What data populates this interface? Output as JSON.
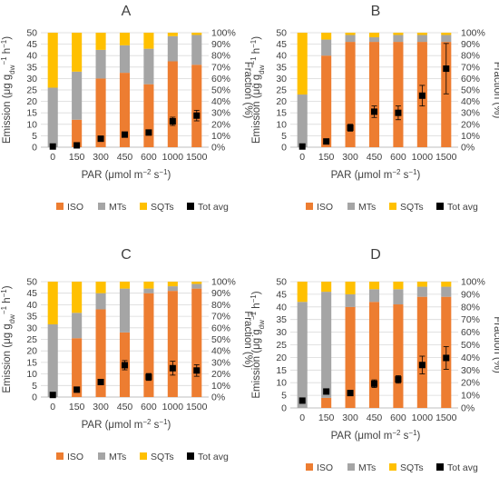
{
  "colors": {
    "ISO": "#ED7D31",
    "MTs": "#A5A5A5",
    "SQTs": "#FFC000",
    "Tot avg": "#000000",
    "grid": "#d9d9d9",
    "text": "#404040"
  },
  "chart_data": [
    {
      "type": "bar",
      "panel": "A",
      "categories": [
        "0",
        "150",
        "300",
        "450",
        "600",
        "1000",
        "1500"
      ],
      "xlabel": "PAR (μmol m⁻² s⁻¹)",
      "ylabel": "Emission (μg g_dw⁻¹ h⁻¹)",
      "y2label": "Fraction (%)",
      "ylim": [
        0,
        50
      ],
      "y2lim": [
        0,
        100
      ],
      "yticks": [
        "0",
        "5",
        "10",
        "15",
        "20",
        "25",
        "30",
        "35",
        "40",
        "45",
        "50"
      ],
      "y2ticks": [
        "0%",
        "10%",
        "20%",
        "30%",
        "40%",
        "50%",
        "60%",
        "70%",
        "80%",
        "90%",
        "100%"
      ],
      "stacked": true,
      "grid": true,
      "legend": "bottom",
      "series": [
        {
          "name": "ISO",
          "axis": "right",
          "values": [
            0,
            24,
            60,
            65,
            55,
            75,
            72
          ]
        },
        {
          "name": "MTs",
          "axis": "right",
          "values": [
            52,
            42,
            25,
            24,
            31,
            22,
            26
          ]
        },
        {
          "name": "SQTs",
          "axis": "right",
          "values": [
            48,
            34,
            15,
            11,
            14,
            3,
            2
          ]
        },
        {
          "name": "Tot avg",
          "axis": "left",
          "kind": "marker",
          "values": [
            0.3,
            0.8,
            3.7,
            5.5,
            6.4,
            11.3,
            13.8
          ],
          "err": [
            0,
            0,
            0,
            0,
            0,
            1.8,
            2.3
          ]
        }
      ]
    },
    {
      "type": "bar",
      "panel": "B",
      "categories": [
        "0",
        "150",
        "300",
        "450",
        "600",
        "1000",
        "1500"
      ],
      "xlabel": "PAR (μmol m⁻² s⁻¹)",
      "ylabel": "Emission (μg g_dw⁻¹ h⁻¹)",
      "y2label": "Fraction (%)",
      "ylim": [
        0,
        50
      ],
      "y2lim": [
        0,
        100
      ],
      "yticks": [
        "0",
        "5",
        "10",
        "15",
        "20",
        "25",
        "30",
        "35",
        "40",
        "45",
        "50"
      ],
      "y2ticks": [
        "0%",
        "10%",
        "20%",
        "30%",
        "40%",
        "50%",
        "60%",
        "70%",
        "80%",
        "90%",
        "100%"
      ],
      "stacked": true,
      "grid": true,
      "legend": "bottom",
      "series": [
        {
          "name": "ISO",
          "axis": "right",
          "values": [
            0,
            80,
            92,
            92,
            92,
            92,
            92
          ]
        },
        {
          "name": "MTs",
          "axis": "right",
          "values": [
            46,
            14,
            6,
            4,
            6,
            6,
            6
          ]
        },
        {
          "name": "SQTs",
          "axis": "right",
          "values": [
            54,
            6,
            2,
            4,
            2,
            2,
            2
          ]
        },
        {
          "name": "Tot avg",
          "axis": "left",
          "kind": "marker",
          "values": [
            0.3,
            2.5,
            8.5,
            15.5,
            15.0,
            22.5,
            34.3
          ],
          "err": [
            0,
            0,
            1.5,
            2.5,
            3.0,
            4.5,
            11.0
          ]
        }
      ]
    },
    {
      "type": "bar",
      "panel": "C",
      "categories": [
        "0",
        "150",
        "300",
        "450",
        "600",
        "1000",
        "1500"
      ],
      "xlabel": "PAR (μmol m⁻² s⁻¹)",
      "ylabel": "Emission (μg g_dw⁻¹ h⁻¹)",
      "y2label": "Fraction (%)",
      "ylim": [
        0,
        50
      ],
      "y2lim": [
        0,
        100
      ],
      "yticks": [
        "0",
        "5",
        "10",
        "15",
        "20",
        "25",
        "30",
        "35",
        "40",
        "45",
        "50"
      ],
      "y2ticks": [
        "0%",
        "10%",
        "20%",
        "30%",
        "40%",
        "50%",
        "60%",
        "70%",
        "80%",
        "90%",
        "100%"
      ],
      "stacked": true,
      "grid": true,
      "legend": "bottom",
      "series": [
        {
          "name": "ISO",
          "axis": "right",
          "values": [
            0,
            51,
            76,
            56,
            90,
            92,
            94
          ]
        },
        {
          "name": "MTs",
          "axis": "right",
          "values": [
            63,
            22,
            14,
            38,
            4,
            4,
            4
          ]
        },
        {
          "name": "SQTs",
          "axis": "right",
          "values": [
            37,
            27,
            10,
            6,
            6,
            4,
            2
          ]
        },
        {
          "name": "Tot avg",
          "axis": "left",
          "kind": "marker",
          "values": [
            0.9,
            3.2,
            6.5,
            13.8,
            8.7,
            12.5,
            11.5
          ],
          "err": [
            0,
            0,
            0,
            2.0,
            1.5,
            3.0,
            2.5
          ]
        }
      ]
    },
    {
      "type": "bar",
      "panel": "D",
      "categories": [
        "0",
        "150",
        "300",
        "450",
        "600",
        "1000",
        "1500"
      ],
      "xlabel": "PAR (μmol m⁻² s⁻¹)",
      "ylabel": "Emission (μg g_dw⁻¹ h⁻¹)",
      "y2label": "Fraction (%)",
      "ylim": [
        0,
        50
      ],
      "y2lim": [
        0,
        100
      ],
      "yticks": [
        "0",
        "5",
        "10",
        "15",
        "20",
        "25",
        "30",
        "35",
        "40",
        "45",
        "50"
      ],
      "y2ticks": [
        "0%",
        "10%",
        "20%",
        "30%",
        "40%",
        "50%",
        "60%",
        "70%",
        "80%",
        "90%",
        "100%"
      ],
      "stacked": true,
      "grid": true,
      "legend": "bottom",
      "series": [
        {
          "name": "ISO",
          "axis": "right",
          "values": [
            0,
            8,
            80,
            84,
            82,
            88,
            88
          ]
        },
        {
          "name": "MTs",
          "axis": "right",
          "values": [
            84,
            84,
            10,
            10,
            12,
            8,
            8
          ]
        },
        {
          "name": "SQTs",
          "axis": "right",
          "values": [
            16,
            8,
            10,
            6,
            6,
            4,
            4
          ]
        },
        {
          "name": "Tot avg",
          "axis": "left",
          "kind": "marker",
          "values": [
            2.9,
            6.5,
            5.9,
            9.6,
            11.3,
            17.0,
            19.8
          ],
          "err": [
            0,
            1.0,
            0.8,
            1.5,
            1.5,
            3.5,
            4.5
          ]
        }
      ]
    }
  ]
}
